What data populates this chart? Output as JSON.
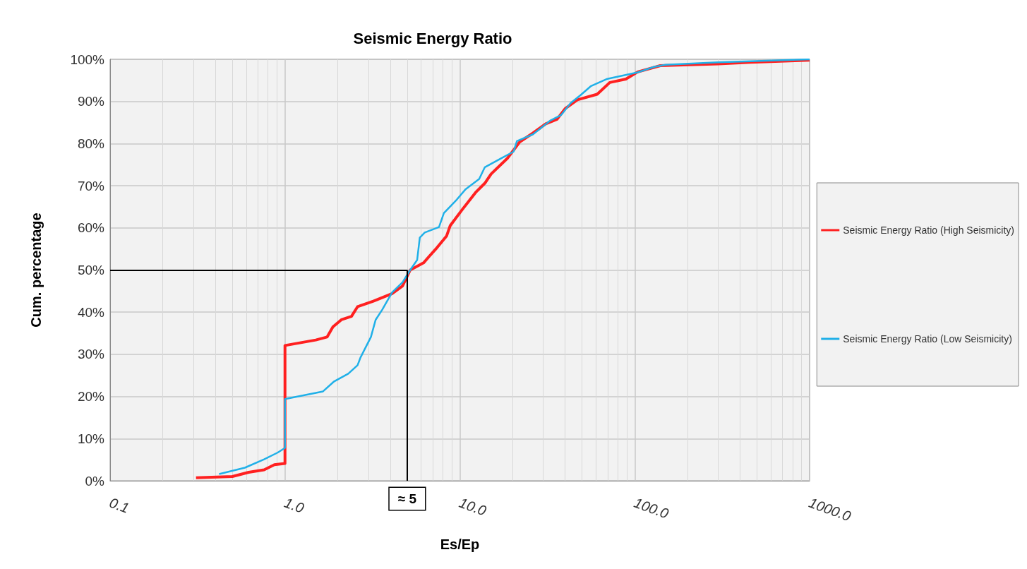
{
  "chart_data": {
    "type": "line",
    "title": "Seismic Energy Ratio",
    "xlabel": "Es/Ep",
    "ylabel": "Cum. percentage",
    "log": "x",
    "grid": true,
    "legend": "right",
    "marker": "none",
    "line_style": "solid",
    "xlim": [
      0.1,
      1000
    ],
    "xticks": [
      0.1,
      {
        "value": 1,
        "label": "1.0"
      },
      {
        "value": 10,
        "label": "10.0"
      },
      {
        "value": 100,
        "label": "100.0"
      },
      {
        "value": 1000,
        "label": "1000.0"
      }
    ],
    "ylim": [
      0,
      100
    ],
    "yticks": [
      {
        "value": 0,
        "label": "0%"
      },
      {
        "value": 10,
        "label": "10%"
      },
      {
        "value": 20,
        "label": "20%"
      },
      {
        "value": 30,
        "label": "30%"
      },
      {
        "value": 40,
        "label": "40%"
      },
      {
        "value": 50,
        "label": "50%"
      },
      {
        "value": 60,
        "label": "60%"
      },
      {
        "value": 70,
        "label": "70%"
      },
      {
        "value": 80,
        "label": "80%"
      },
      {
        "value": 90,
        "label": "90%"
      },
      {
        "value": 100,
        "label": "100%"
      }
    ],
    "series": [
      {
        "name": "Seismic Energy Ratio (High Seismicity)",
        "color": "#ff2020",
        "x": [
          0.31,
          0.5,
          0.62,
          0.76,
          0.87,
          1.0,
          1.0,
          1.17,
          1.5,
          1.74,
          1.88,
          2.1,
          2.4,
          2.6,
          3.2,
          4.1,
          4.7,
          5.2,
          6.2,
          6.7,
          7.4,
          8.4,
          8.8,
          10.3,
          12.3,
          13.9,
          15.1,
          18.7,
          22,
          26.2,
          31,
          36,
          40,
          47,
          61,
          72,
          89,
          104,
          140,
          300,
          460,
          1000
        ],
        "values": [
          0.7,
          1,
          2,
          2.6,
          3.8,
          4.1,
          32.1,
          32.6,
          33.4,
          34.1,
          36.5,
          38.2,
          39,
          41.3,
          42.6,
          44.4,
          46.2,
          50,
          51.7,
          53.3,
          55.3,
          58.1,
          60.5,
          64.3,
          68.4,
          70.6,
          72.8,
          76.5,
          80.4,
          82.5,
          84.7,
          85.8,
          88.3,
          90.4,
          91.7,
          94.5,
          95.3,
          97,
          98.5,
          98.9,
          99.3,
          99.8
        ]
      },
      {
        "name": "Seismic Energy Ratio (Low Seismicity)",
        "color": "#20b0e8",
        "x": [
          0.42,
          0.59,
          0.76,
          0.91,
          1.0,
          1.0,
          1.65,
          1.9,
          2.3,
          2.6,
          2.7,
          3.1,
          3.3,
          3.6,
          3.8,
          4.1,
          4.7,
          5.2,
          5.7,
          5.9,
          6.3,
          7.6,
          8.1,
          9.6,
          10.8,
          12.9,
          13.9,
          17.2,
          20.3,
          21.2,
          26.2,
          33,
          38,
          43,
          49,
          56,
          69,
          104,
          129,
          150,
          300,
          1000
        ],
        "values": [
          1.6,
          3.1,
          5.1,
          6.7,
          7.8,
          19.4,
          21.2,
          23.5,
          25.4,
          27.4,
          29.2,
          34.1,
          38.2,
          40.6,
          42.3,
          44.7,
          47.1,
          50,
          52.4,
          57.7,
          58.9,
          60.2,
          63.5,
          66.7,
          69.2,
          71.6,
          74.4,
          76.5,
          78.1,
          80.6,
          82.2,
          85.5,
          86.8,
          89.6,
          91.5,
          93.6,
          95.3,
          96.9,
          98.2,
          98.7,
          99.3,
          100
        ]
      }
    ],
    "ref_lines": [
      {
        "axis": "y",
        "value": 50
      },
      {
        "axis": "x",
        "value": 5
      }
    ],
    "annotations": [
      {
        "text": "≈ 5",
        "x": 5,
        "y": 0
      }
    ]
  }
}
